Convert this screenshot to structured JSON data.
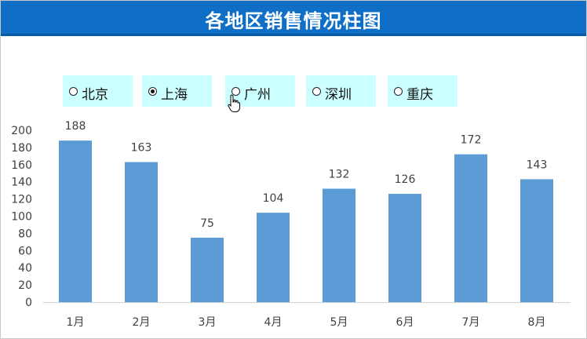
{
  "title": "各地区销售情况柱图",
  "region_options": [
    {
      "label": "北京",
      "selected": false
    },
    {
      "label": "上海",
      "selected": true
    },
    {
      "label": "广州",
      "selected": false
    },
    {
      "label": "深圳",
      "selected": false
    },
    {
      "label": "重庆",
      "selected": false
    }
  ],
  "colors": {
    "title_bg": "#0f6fc6",
    "option_bg": "#ccffff",
    "bar": "#5b9bd5"
  },
  "chart_data": {
    "type": "bar",
    "categories": [
      "1月",
      "2月",
      "3月",
      "4月",
      "5月",
      "6月",
      "7月",
      "8月"
    ],
    "values": [
      188,
      163,
      75,
      104,
      132,
      126,
      172,
      143
    ],
    "ylim": [
      0,
      200
    ],
    "yticks": [
      0,
      20,
      40,
      60,
      80,
      100,
      120,
      140,
      160,
      180,
      200
    ],
    "grid": false,
    "data_labels": true
  }
}
